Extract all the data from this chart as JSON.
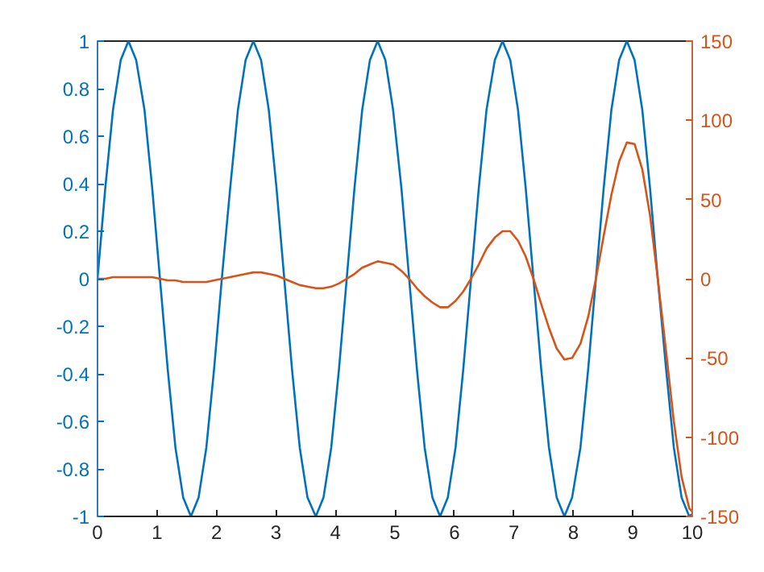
{
  "chart_data": {
    "type": "line",
    "x": [
      0,
      0.13,
      0.26,
      0.39,
      0.52,
      0.65,
      0.79,
      0.92,
      1.05,
      1.18,
      1.31,
      1.44,
      1.57,
      1.7,
      1.83,
      1.96,
      2.09,
      2.23,
      2.36,
      2.49,
      2.62,
      2.75,
      2.88,
      3.01,
      3.14,
      3.27,
      3.4,
      3.53,
      3.67,
      3.8,
      3.93,
      4.06,
      4.19,
      4.32,
      4.45,
      4.58,
      4.71,
      4.84,
      4.97,
      5.11,
      5.24,
      5.37,
      5.5,
      5.63,
      5.76,
      5.89,
      6.02,
      6.15,
      6.28,
      6.41,
      6.54,
      6.68,
      6.81,
      6.94,
      7.07,
      7.2,
      7.33,
      7.46,
      7.59,
      7.72,
      7.85,
      7.98,
      8.12,
      8.25,
      8.38,
      8.51,
      8.64,
      8.77,
      8.9,
      9.03,
      9.16,
      9.29,
      9.42,
      9.56,
      9.69,
      9.82,
      9.95,
      10
    ],
    "series": [
      {
        "color": "#0072bd",
        "axis": "y",
        "values": [
          0,
          0.38,
          0.71,
          0.92,
          1,
          0.92,
          0.71,
          0.38,
          0,
          -0.38,
          -0.71,
          -0.92,
          -1,
          -0.92,
          -0.71,
          -0.38,
          0,
          0.38,
          0.71,
          0.92,
          1,
          0.92,
          0.71,
          0.38,
          0,
          -0.38,
          -0.71,
          -0.92,
          -1,
          -0.92,
          -0.71,
          -0.38,
          0,
          0.38,
          0.71,
          0.92,
          1,
          0.92,
          0.71,
          0.38,
          0,
          -0.38,
          -0.71,
          -0.92,
          -1,
          -0.92,
          -0.71,
          -0.38,
          0,
          0.38,
          0.71,
          0.92,
          1,
          0.92,
          0.71,
          0.38,
          0,
          -0.38,
          -0.71,
          -0.92,
          -1,
          -0.92,
          -0.71,
          -0.38,
          0,
          0.38,
          0.71,
          0.92,
          1,
          0.92,
          0.71,
          0.38,
          0,
          -0.38,
          -0.71,
          -0.92,
          -1,
          -0.99
        ]
      },
      {
        "color": "#d95319",
        "axis": "y2",
        "values": [
          0,
          0,
          1,
          1,
          1,
          1,
          1,
          1,
          0,
          -1,
          -1,
          -2,
          -2,
          -2,
          -2,
          -1,
          0,
          1,
          2,
          3,
          4,
          4,
          3,
          2,
          0,
          -2,
          -4,
          -5,
          -6,
          -6,
          -5,
          -3,
          0,
          3,
          7,
          9,
          11,
          10,
          9,
          5,
          0,
          -6,
          -11,
          -15,
          -18,
          -18,
          -14,
          -8,
          0,
          9,
          19,
          26,
          30,
          30,
          24,
          14,
          0,
          -16,
          -31,
          -44,
          -51,
          -50,
          -41,
          -24,
          0,
          27,
          53,
          74,
          86,
          85,
          69,
          40,
          0,
          -46,
          -90,
          -125,
          -145,
          -147
        ]
      }
    ],
    "xlim": [
      0,
      10
    ],
    "xticks": [
      0,
      1,
      2,
      3,
      4,
      5,
      6,
      7,
      8,
      9,
      10
    ],
    "ylim": [
      -1,
      1
    ],
    "yticks": [
      -1,
      -0.8,
      -0.6,
      -0.4,
      -0.2,
      0,
      0.2,
      0.4,
      0.6,
      0.8,
      1
    ],
    "y2lim": [
      -150,
      150
    ],
    "y2ticks": [
      -150,
      -100,
      -50,
      0,
      50,
      100,
      150
    ],
    "grid": false,
    "line_style": "solid",
    "marker": "none"
  }
}
